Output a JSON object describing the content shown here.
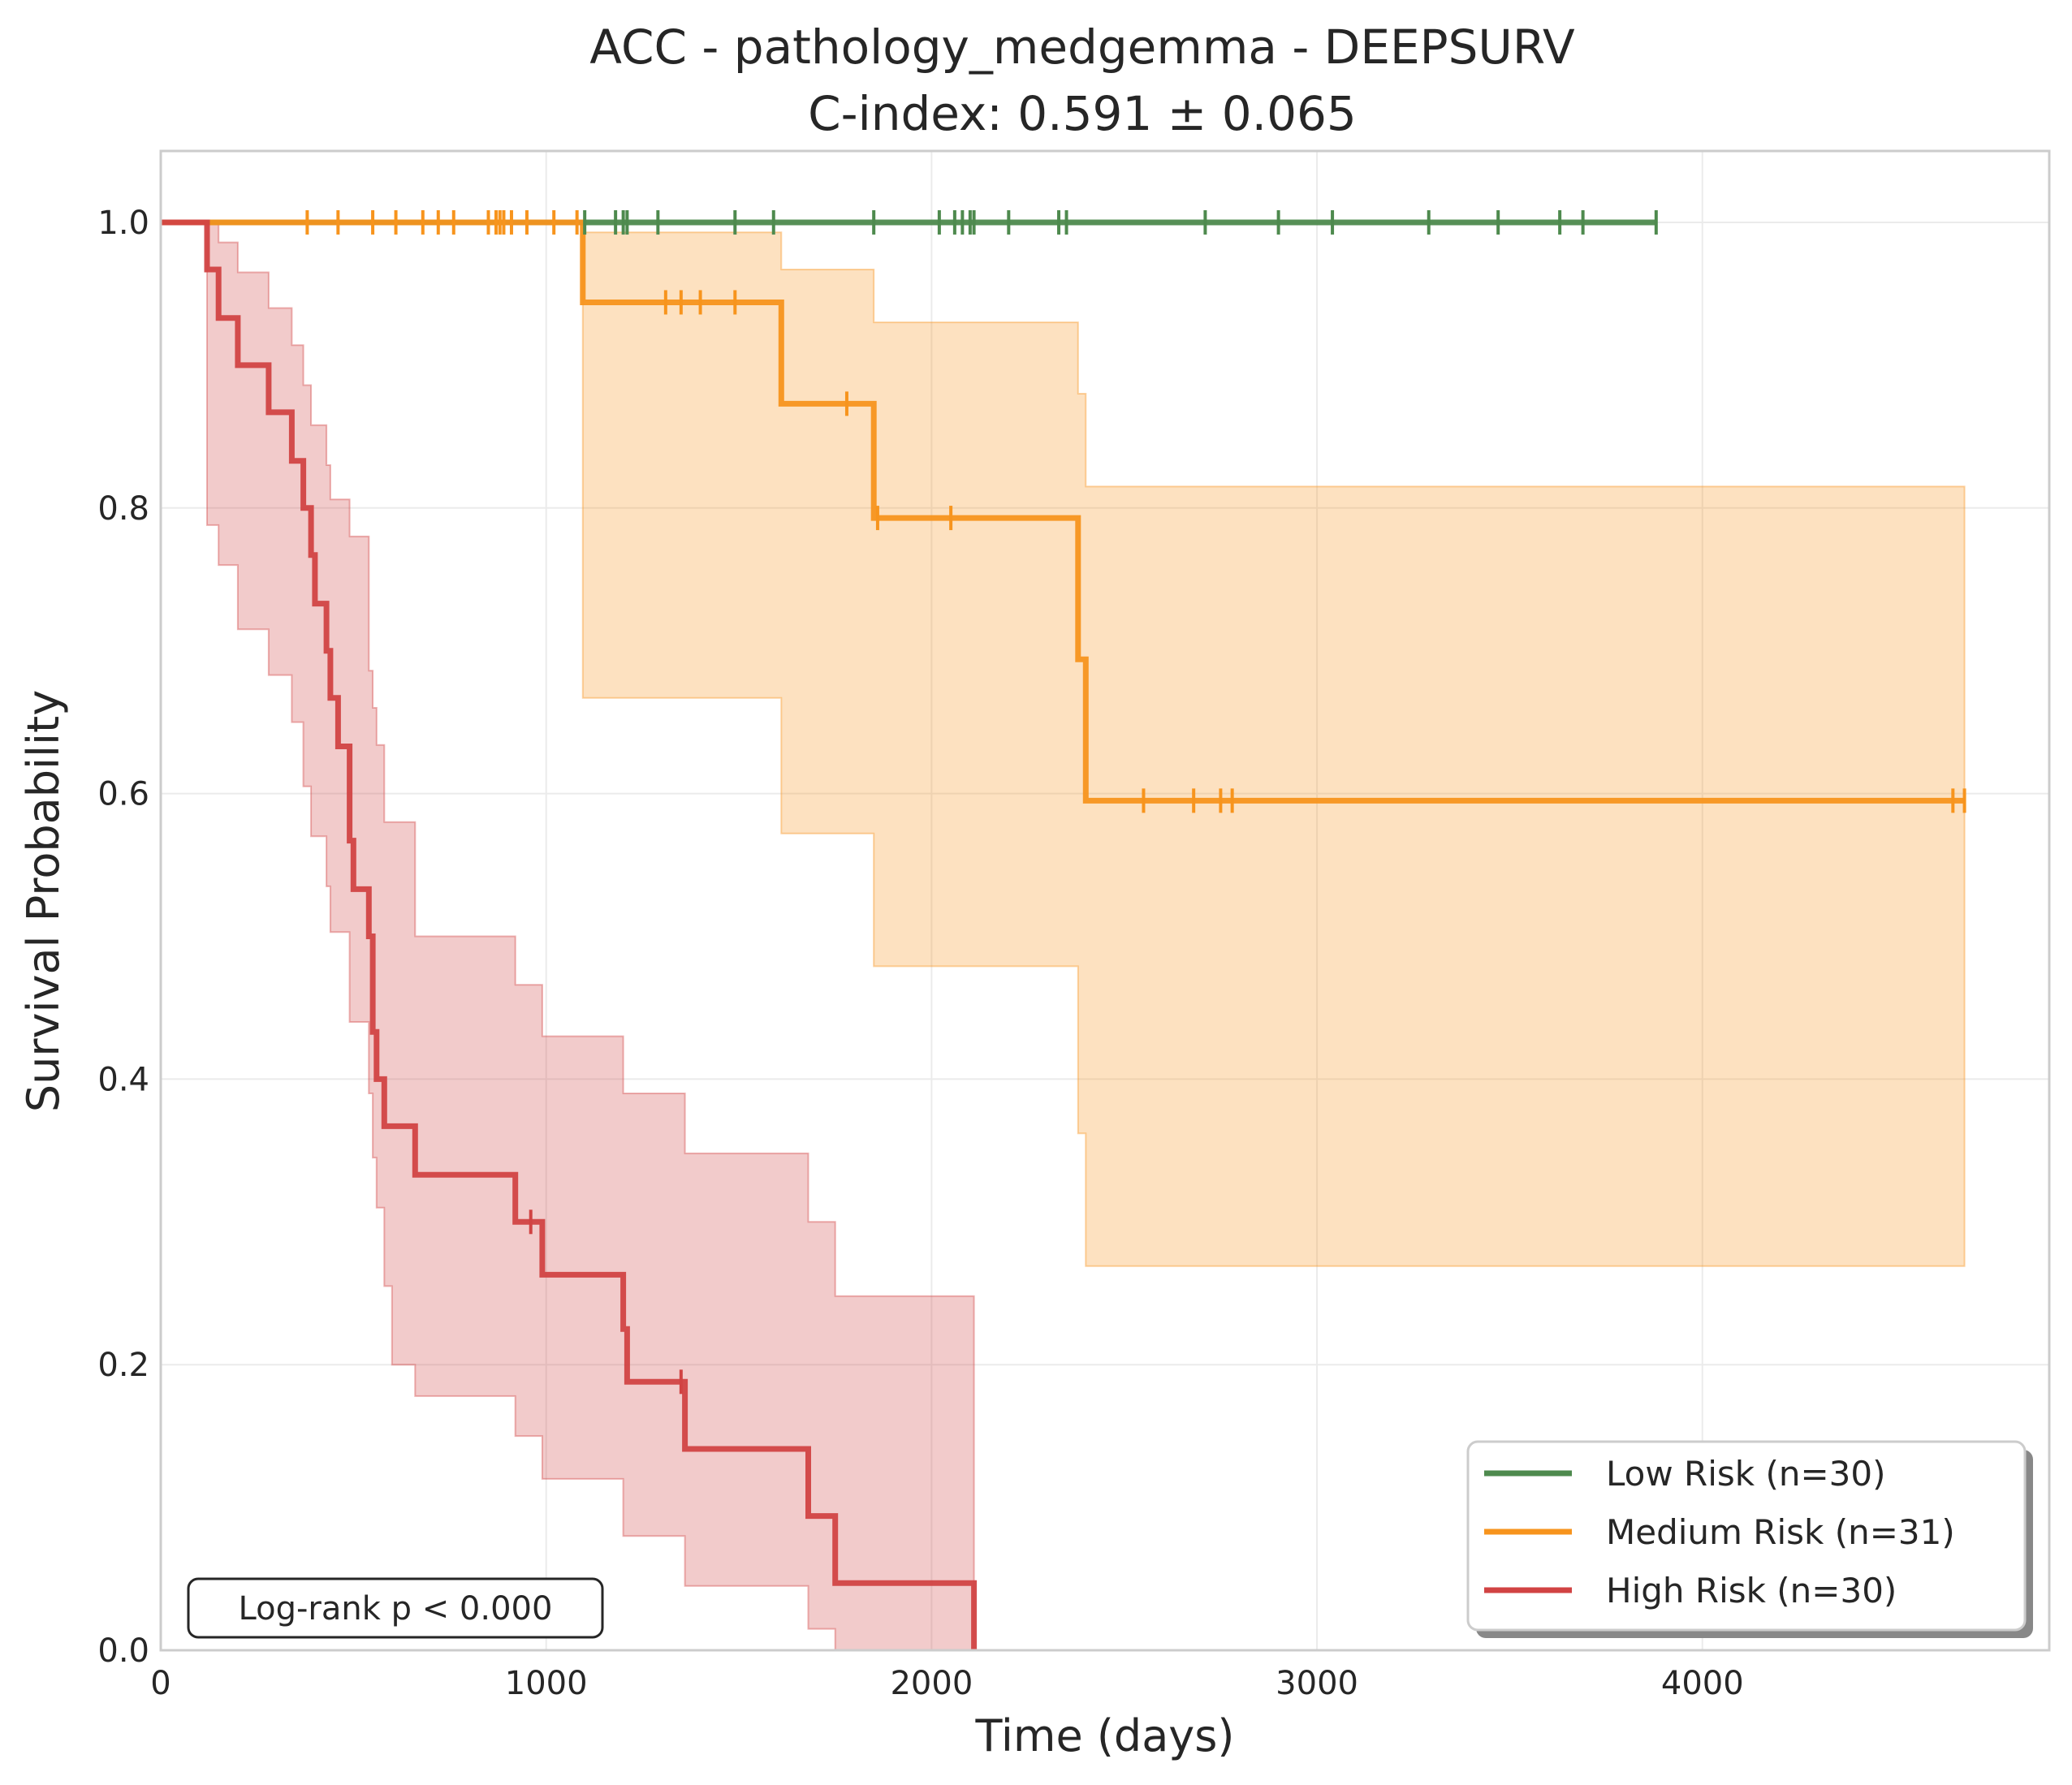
{
  "chart_data": {
    "type": "line",
    "title_line1": "ACC - pathology_medgemma - DEEPSURV",
    "title_line2": "C-index: 0.591 ± 0.065",
    "xlabel": "Time (days)",
    "ylabel": "Survival Probability",
    "xlim": [
      0,
      4900
    ],
    "ylim": [
      0,
      1.05
    ],
    "x_ticks": [
      0,
      1000,
      2000,
      3000,
      4000
    ],
    "x_tick_labels": [
      "0",
      "1000",
      "2000",
      "3000",
      "4000"
    ],
    "y_ticks": [
      0,
      0.2,
      0.4,
      0.6,
      0.8,
      1.0
    ],
    "y_tick_labels": [
      "0.0",
      "0.2",
      "0.4",
      "0.6",
      "0.8",
      "1.0"
    ],
    "grid": true,
    "legend_position": "lower-right",
    "annotation": "Log-rank p < 0.000",
    "series": [
      {
        "name": "Low Risk (n=30)",
        "color": "#4e8a4e",
        "steps": [
          [
            0,
            1.0
          ],
          [
            3880,
            1.0
          ]
        ],
        "censor_times": [
          1100,
          1180,
          1200,
          1210,
          1290,
          1490,
          1590,
          1850,
          2020,
          2060,
          2080,
          2100,
          2110,
          2200,
          2330,
          2350,
          2710,
          2900,
          3040,
          3290,
          3470,
          3630,
          3690,
          3880
        ],
        "ci": null
      },
      {
        "name": "Medium Risk (n=31)",
        "color": "#f7941d",
        "steps": [
          [
            0,
            1.0
          ],
          [
            1095,
            1.0
          ],
          [
            1095,
            0.944
          ],
          [
            1610,
            0.944
          ],
          [
            1610,
            0.873
          ],
          [
            1850,
            0.873
          ],
          [
            1850,
            0.793
          ],
          [
            2380,
            0.793
          ],
          [
            2380,
            0.694
          ],
          [
            2400,
            0.694
          ],
          [
            2400,
            0.595
          ],
          [
            4680,
            0.595
          ]
        ],
        "censor_times": [
          380,
          460,
          550,
          610,
          680,
          720,
          760,
          850,
          870,
          880,
          890,
          910,
          950,
          1020,
          1080,
          1310,
          1350,
          1400,
          1490,
          1780,
          1860,
          2050,
          2550,
          2680,
          2750,
          2780,
          4650,
          4680
        ],
        "ci": {
          "upper": [
            [
              1095,
              0.993
            ],
            [
              1610,
              0.993
            ],
            [
              1610,
              0.967
            ],
            [
              1850,
              0.967
            ],
            [
              1850,
              0.93
            ],
            [
              2380,
              0.93
            ],
            [
              2380,
              0.88
            ],
            [
              2400,
              0.88
            ],
            [
              2400,
              0.815
            ],
            [
              4680,
              0.815
            ]
          ],
          "lower": [
            [
              1095,
              0.667
            ],
            [
              1610,
              0.667
            ],
            [
              1610,
              0.572
            ],
            [
              1850,
              0.572
            ],
            [
              1850,
              0.479
            ],
            [
              2380,
              0.479
            ],
            [
              2380,
              0.362
            ],
            [
              2400,
              0.362
            ],
            [
              2400,
              0.269
            ],
            [
              4680,
              0.269
            ]
          ]
        }
      },
      {
        "name": "High Risk (n=30)",
        "color": "#d14343",
        "steps": [
          [
            0,
            1.0
          ],
          [
            120,
            1.0
          ],
          [
            120,
            0.967
          ],
          [
            150,
            0.967
          ],
          [
            150,
            0.933
          ],
          [
            200,
            0.933
          ],
          [
            200,
            0.9
          ],
          [
            280,
            0.9
          ],
          [
            280,
            0.867
          ],
          [
            340,
            0.867
          ],
          [
            340,
            0.833
          ],
          [
            370,
            0.833
          ],
          [
            370,
            0.8
          ],
          [
            390,
            0.8
          ],
          [
            390,
            0.767
          ],
          [
            400,
            0.767
          ],
          [
            400,
            0.733
          ],
          [
            430,
            0.733
          ],
          [
            430,
            0.7
          ],
          [
            440,
            0.7
          ],
          [
            440,
            0.667
          ],
          [
            460,
            0.667
          ],
          [
            460,
            0.633
          ],
          [
            490,
            0.633
          ],
          [
            490,
            0.567
          ],
          [
            500,
            0.567
          ],
          [
            500,
            0.533
          ],
          [
            540,
            0.533
          ],
          [
            540,
            0.5
          ],
          [
            550,
            0.5
          ],
          [
            550,
            0.433
          ],
          [
            560,
            0.433
          ],
          [
            560,
            0.4
          ],
          [
            580,
            0.4
          ],
          [
            580,
            0.367
          ],
          [
            660,
            0.367
          ],
          [
            660,
            0.333
          ],
          [
            920,
            0.333
          ],
          [
            920,
            0.3
          ],
          [
            990,
            0.3
          ],
          [
            990,
            0.263
          ],
          [
            1200,
            0.263
          ],
          [
            1200,
            0.225
          ],
          [
            1210,
            0.225
          ],
          [
            1210,
            0.188
          ],
          [
            1360,
            0.188
          ],
          [
            1360,
            0.141
          ],
          [
            1680,
            0.141
          ],
          [
            1680,
            0.094
          ],
          [
            1750,
            0.094
          ],
          [
            1750,
            0.047
          ],
          [
            2110,
            0.047
          ],
          [
            2110,
            0.0
          ]
        ],
        "censor_times": [
          960,
          1350
        ],
        "ci": {
          "upper": [
            [
              120,
              1.0
            ],
            [
              150,
              1.0
            ],
            [
              150,
              0.986
            ],
            [
              200,
              0.986
            ],
            [
              200,
              0.965
            ],
            [
              280,
              0.965
            ],
            [
              280,
              0.94
            ],
            [
              340,
              0.94
            ],
            [
              340,
              0.914
            ],
            [
              370,
              0.914
            ],
            [
              370,
              0.886
            ],
            [
              390,
              0.886
            ],
            [
              390,
              0.858
            ],
            [
              430,
              0.858
            ],
            [
              430,
              0.83
            ],
            [
              440,
              0.83
            ],
            [
              440,
              0.806
            ],
            [
              490,
              0.806
            ],
            [
              490,
              0.78
            ],
            [
              540,
              0.78
            ],
            [
              540,
              0.686
            ],
            [
              550,
              0.686
            ],
            [
              550,
              0.66
            ],
            [
              560,
              0.66
            ],
            [
              560,
              0.634
            ],
            [
              580,
              0.634
            ],
            [
              580,
              0.58
            ],
            [
              660,
              0.58
            ],
            [
              660,
              0.5
            ],
            [
              920,
              0.5
            ],
            [
              920,
              0.466
            ],
            [
              990,
              0.466
            ],
            [
              990,
              0.43
            ],
            [
              1200,
              0.43
            ],
            [
              1200,
              0.39
            ],
            [
              1360,
              0.39
            ],
            [
              1360,
              0.348
            ],
            [
              1680,
              0.348
            ],
            [
              1680,
              0.3
            ],
            [
              1750,
              0.3
            ],
            [
              1750,
              0.248
            ],
            [
              2110,
              0.248
            ]
          ],
          "lower": [
            [
              120,
              0.788
            ],
            [
              150,
              0.788
            ],
            [
              150,
              0.76
            ],
            [
              200,
              0.76
            ],
            [
              200,
              0.715
            ],
            [
              280,
              0.715
            ],
            [
              280,
              0.683
            ],
            [
              340,
              0.683
            ],
            [
              340,
              0.65
            ],
            [
              370,
              0.65
            ],
            [
              370,
              0.605
            ],
            [
              390,
              0.605
            ],
            [
              390,
              0.57
            ],
            [
              430,
              0.57
            ],
            [
              430,
              0.535
            ],
            [
              440,
              0.535
            ],
            [
              440,
              0.503
            ],
            [
              490,
              0.503
            ],
            [
              490,
              0.44
            ],
            [
              540,
              0.44
            ],
            [
              540,
              0.39
            ],
            [
              550,
              0.39
            ],
            [
              550,
              0.345
            ],
            [
              560,
              0.345
            ],
            [
              560,
              0.31
            ],
            [
              580,
              0.31
            ],
            [
              580,
              0.255
            ],
            [
              600,
              0.255
            ],
            [
              600,
              0.2
            ],
            [
              660,
              0.2
            ],
            [
              660,
              0.178
            ],
            [
              920,
              0.178
            ],
            [
              920,
              0.15
            ],
            [
              990,
              0.15
            ],
            [
              990,
              0.12
            ],
            [
              1200,
              0.12
            ],
            [
              1200,
              0.08
            ],
            [
              1360,
              0.08
            ],
            [
              1360,
              0.045
            ],
            [
              1680,
              0.045
            ],
            [
              1680,
              0.015
            ],
            [
              1750,
              0.015
            ],
            [
              1750,
              0.0
            ],
            [
              2110,
              0.0
            ]
          ]
        }
      }
    ]
  }
}
